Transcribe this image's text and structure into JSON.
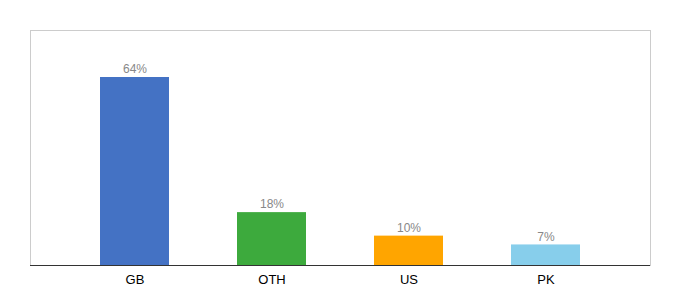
{
  "chart_data": {
    "type": "bar",
    "categories": [
      "GB",
      "OTH",
      "US",
      "PK"
    ],
    "values": [
      64,
      18,
      10,
      7
    ],
    "value_labels": [
      "64%",
      "18%",
      "10%",
      "7%"
    ],
    "colors": [
      "#4472C4",
      "#3DAA3D",
      "#FFA500",
      "#87CEEB"
    ],
    "ylim": [
      0,
      80
    ],
    "grid": false,
    "data_labels": true,
    "tick_labels": "x"
  }
}
